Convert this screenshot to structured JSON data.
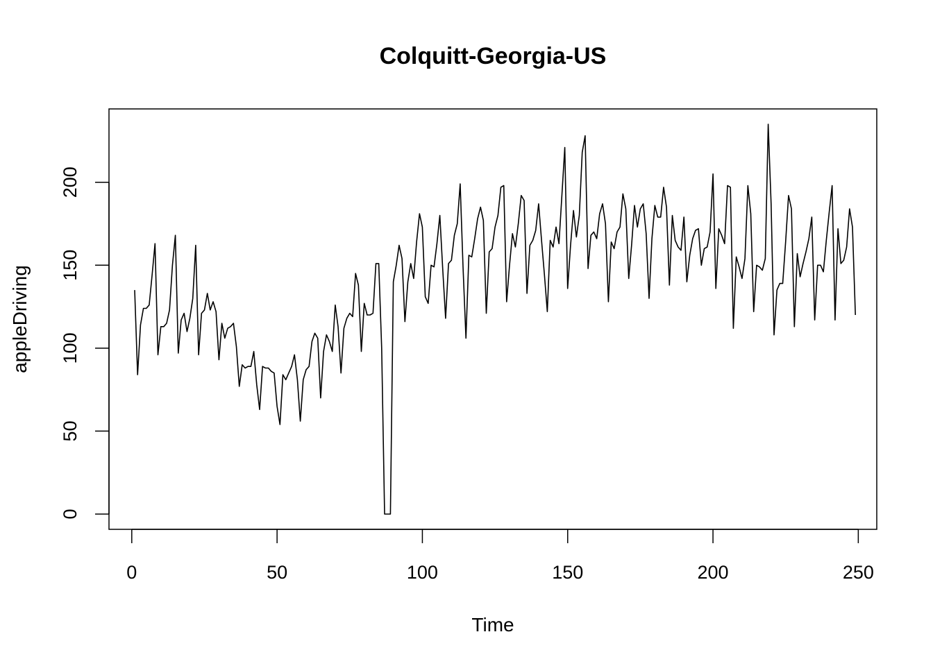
{
  "chart_data": {
    "type": "line",
    "title": "Colquitt-Georgia-US",
    "xlabel": "Time",
    "ylabel": "appleDriving",
    "xlim": [
      1,
      248
    ],
    "ylim": [
      0,
      235
    ],
    "x_ticks": [
      0,
      50,
      100,
      150,
      200,
      250
    ],
    "y_ticks": [
      0,
      50,
      100,
      150,
      200
    ],
    "x_tick_labels": [
      "0",
      "50",
      "100",
      "150",
      "200",
      "250"
    ],
    "y_tick_labels": [
      "0",
      "50",
      "100",
      "150",
      "200"
    ],
    "grid": false,
    "line_color": "#000000",
    "series": [
      {
        "x_start": 1,
        "values": [
          135,
          84,
          114,
          124,
          124,
          126,
          144,
          163,
          96,
          113,
          113,
          115,
          123,
          150,
          168,
          97,
          117,
          121,
          110,
          118,
          130,
          162,
          96,
          121,
          123,
          133,
          123,
          128,
          122,
          93,
          115,
          106,
          112,
          113,
          115,
          101,
          77,
          90,
          88,
          89,
          89,
          98,
          78,
          63,
          89,
          88,
          88,
          86,
          85,
          65,
          54,
          84,
          81,
          85,
          89,
          96,
          81,
          56,
          81,
          87,
          89,
          104,
          109,
          106,
          70,
          98,
          108,
          104,
          98,
          126,
          113,
          85,
          112,
          118,
          121,
          119,
          145,
          138,
          98,
          127,
          120,
          120,
          121,
          151,
          151,
          100,
          0,
          0,
          0,
          140,
          150,
          162,
          154,
          116,
          140,
          151,
          142,
          164,
          181,
          173,
          131,
          127,
          150,
          149,
          163,
          180,
          148,
          118,
          151,
          153,
          168,
          175,
          199,
          149,
          106,
          156,
          155,
          166,
          178,
          185,
          177,
          121,
          158,
          160,
          173,
          180,
          197,
          198,
          128,
          150,
          169,
          161,
          175,
          192,
          189,
          133,
          162,
          165,
          171,
          187,
          165,
          144,
          122,
          165,
          161,
          173,
          163,
          192,
          221,
          136,
          162,
          183,
          167,
          180,
          218,
          228,
          148,
          168,
          170,
          166,
          181,
          187,
          175,
          128,
          164,
          160,
          170,
          173,
          193,
          184,
          142,
          162,
          186,
          173,
          184,
          187,
          169,
          130,
          166,
          186,
          179,
          179,
          197,
          185,
          138,
          180,
          165,
          161,
          159,
          179,
          140,
          156,
          166,
          171,
          172,
          150,
          160,
          161,
          170,
          205,
          136,
          172,
          168,
          163,
          198,
          197,
          112,
          155,
          149,
          142,
          154,
          198,
          181,
          122,
          150,
          149,
          147,
          154,
          235,
          187,
          108,
          135,
          139,
          139,
          164,
          192,
          184,
          113,
          157,
          143,
          151,
          158,
          166,
          179,
          117,
          150,
          150,
          146,
          165,
          182,
          198,
          117,
          172,
          151,
          153,
          161,
          184,
          173,
          120
        ]
      }
    ]
  }
}
